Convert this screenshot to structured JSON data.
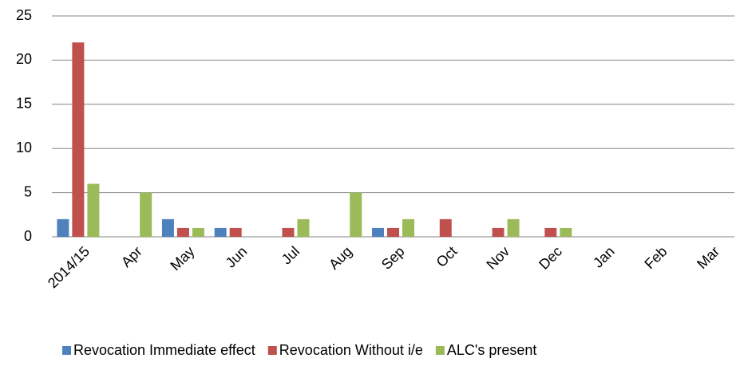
{
  "chart_data": {
    "type": "bar",
    "categories": [
      "2014/15",
      "Apr",
      "May",
      "Jun",
      "Jul",
      "Aug",
      "Sep",
      "Oct",
      "Nov",
      "Dec",
      "Jan",
      "Feb",
      "Mar"
    ],
    "series": [
      {
        "name": "Revocation Immediate effect",
        "color": "#4f81bd",
        "values": [
          2,
          0,
          2,
          1,
          0,
          0,
          1,
          0,
          0,
          0,
          0,
          0,
          0
        ]
      },
      {
        "name": "Revocation Without i/e",
        "color": "#c0504d",
        "values": [
          22,
          0,
          1,
          1,
          1,
          0,
          1,
          2,
          1,
          1,
          0,
          0,
          0
        ]
      },
      {
        "name": "ALC's present",
        "color": "#9bbb59",
        "values": [
          6,
          5,
          1,
          0,
          2,
          5,
          2,
          0,
          2,
          1,
          0,
          0,
          0
        ]
      }
    ],
    "ylim": [
      0,
      25
    ],
    "yticks": [
      0,
      5,
      10,
      15,
      20,
      25
    ],
    "grid": true,
    "legend": "bottom"
  }
}
